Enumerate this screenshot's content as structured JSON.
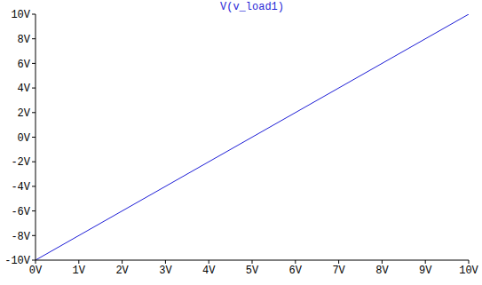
{
  "chart_data": {
    "type": "line",
    "title": "V(v_load1)",
    "x": [
      0,
      10
    ],
    "values": [
      -10,
      10
    ],
    "color": "#1f1fd6",
    "xlim": [
      0,
      10
    ],
    "xticks": [
      {
        "value": 0,
        "label": "0V"
      },
      {
        "value": 1,
        "label": "1V"
      },
      {
        "value": 2,
        "label": "2V"
      },
      {
        "value": 3,
        "label": "3V"
      },
      {
        "value": 4,
        "label": "4V"
      },
      {
        "value": 5,
        "label": "5V"
      },
      {
        "value": 6,
        "label": "6V"
      },
      {
        "value": 7,
        "label": "7V"
      },
      {
        "value": 8,
        "label": "8V"
      },
      {
        "value": 9,
        "label": "9V"
      },
      {
        "value": 10,
        "label": "10V"
      }
    ],
    "ylim": [
      -10,
      10
    ],
    "yticks": [
      {
        "value": -10,
        "label": "-10V"
      },
      {
        "value": -8,
        "label": "-8V"
      },
      {
        "value": -6,
        "label": "-6V"
      },
      {
        "value": -4,
        "label": "-4V"
      },
      {
        "value": -2,
        "label": "-2V"
      },
      {
        "value": 0,
        "label": "0V"
      },
      {
        "value": 2,
        "label": "2V"
      },
      {
        "value": 4,
        "label": "4V"
      },
      {
        "value": 6,
        "label": "6V"
      },
      {
        "value": 8,
        "label": "8V"
      },
      {
        "value": 10,
        "label": "10V"
      }
    ],
    "grid": false
  }
}
